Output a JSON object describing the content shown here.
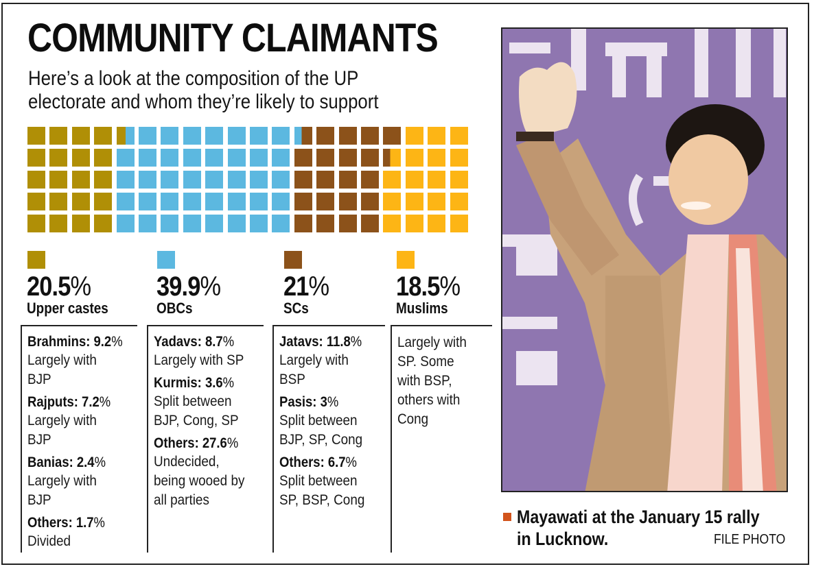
{
  "header": {
    "title": "COMMUNITY CLAIMANTS",
    "subtitle_line1": "Here’s a look at the composition of the UP",
    "subtitle_line2": "electorate and whom they’re likely to support"
  },
  "colors": {
    "upper_castes": "#b08f06",
    "obcs": "#5cb8e0",
    "scs": "#8c521a",
    "muslims": "#fdb515",
    "caption_bullet": "#d2541c"
  },
  "groups": [
    {
      "key": "upper_castes",
      "percent": "20.5",
      "percent_symbol": "%",
      "label": "Upper castes",
      "color": "#b08f06",
      "entries": [
        {
          "name": "Brahmins: 9.2",
          "sym": "%",
          "text": "Largely with\nBJP"
        },
        {
          "name": "Rajputs: 7.2",
          "sym": "%",
          "text": "Largely with\nBJP"
        },
        {
          "name": "Banias: 2.4",
          "sym": "%",
          "text": "Largely with\nBJP"
        },
        {
          "name": "Others: 1.7",
          "sym": "%",
          "text": "Divided"
        }
      ]
    },
    {
      "key": "obcs",
      "percent": "39.9",
      "percent_symbol": "%",
      "label": "OBCs",
      "color": "#5cb8e0",
      "entries": [
        {
          "name": "Yadavs: 8.7",
          "sym": "%",
          "text": "Largely with SP"
        },
        {
          "name": "Kurmis: 3.6",
          "sym": "%",
          "text": "Split between\nBJP, Cong, SP"
        },
        {
          "name": "Others: 27.6",
          "sym": "%",
          "text": "Undecided,\nbeing wooed by\nall parties"
        }
      ]
    },
    {
      "key": "scs",
      "percent": "21",
      "percent_symbol": "%",
      "label": "SCs",
      "color": "#8c521a",
      "entries": [
        {
          "name": "Jatavs: 11.8",
          "sym": "%",
          "text": "Largely with\nBSP"
        },
        {
          "name": "Pasis: 3",
          "sym": "%",
          "text": "Split between\nBJP, SP, Cong"
        },
        {
          "name": "Others: 6.7",
          "sym": "%",
          "text": "Split between\nSP, BSP, Cong"
        }
      ]
    },
    {
      "key": "muslims",
      "percent": "18.5",
      "percent_symbol": "%",
      "label": "Muslims",
      "color": "#fdb515",
      "entries": [
        {
          "name": "",
          "sym": "",
          "text": "Largely with\nSP. Some\nwith BSP,\nothers with\nCong"
        }
      ]
    }
  ],
  "photo": {
    "caption": "Mayawati at the January 15 rally\nin Lucknow.",
    "credit": "FILE PHOTO"
  },
  "chart_data": {
    "type": "waffle",
    "title": "COMMUNITY CLAIMANTS",
    "subtitle": "Here’s a look at the composition of the UP electorate and whom they’re likely to support",
    "grid": {
      "rows": 5,
      "columns": 20,
      "fill_order": "column-major, top-to-bottom"
    },
    "categories": [
      "Upper castes",
      "OBCs",
      "SCs",
      "Muslims"
    ],
    "values": [
      20.5,
      39.9,
      21,
      18.5
    ],
    "unit": "%",
    "colors": [
      "#b08f06",
      "#5cb8e0",
      "#8c521a",
      "#fdb515"
    ],
    "breakdown": {
      "Upper castes": [
        {
          "name": "Brahmins",
          "value": 9.2,
          "support": "Largely with BJP"
        },
        {
          "name": "Rajputs",
          "value": 7.2,
          "support": "Largely with BJP"
        },
        {
          "name": "Banias",
          "value": 2.4,
          "support": "Largely with BJP"
        },
        {
          "name": "Others",
          "value": 1.7,
          "support": "Divided"
        }
      ],
      "OBCs": [
        {
          "name": "Yadavs",
          "value": 8.7,
          "support": "Largely with SP"
        },
        {
          "name": "Kurmis",
          "value": 3.6,
          "support": "Split between BJP, Cong, SP"
        },
        {
          "name": "Others",
          "value": 27.6,
          "support": "Undecided, being wooed by all parties"
        }
      ],
      "SCs": [
        {
          "name": "Jatavs",
          "value": 11.8,
          "support": "Largely with BSP"
        },
        {
          "name": "Pasis",
          "value": 3,
          "support": "Split between BJP, SP, Cong"
        },
        {
          "name": "Others",
          "value": 6.7,
          "support": "Split between SP, BSP, Cong"
        }
      ],
      "Muslims": [
        {
          "name": "Muslims",
          "value": 18.5,
          "support": "Largely with SP. Some with BSP, others with Cong"
        }
      ]
    }
  }
}
